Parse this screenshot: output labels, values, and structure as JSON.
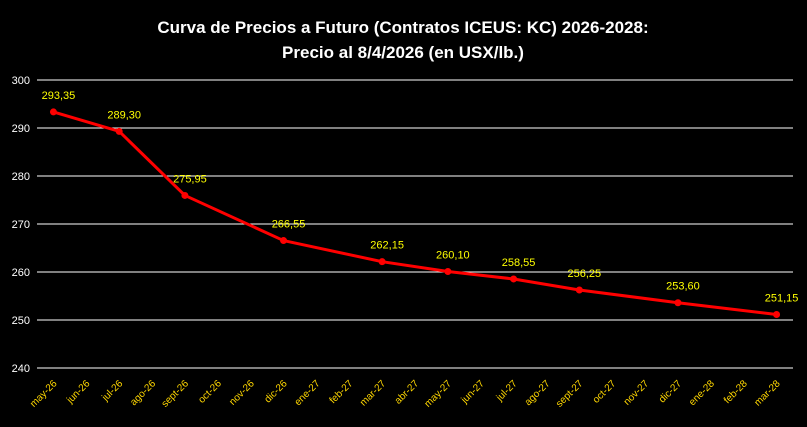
{
  "chart_data": {
    "type": "line",
    "title_line1": "Curva de Precios a Futuro  (Contratos ICEUS: KC) 2026-2028:",
    "title_line2": "Precio al 8/4/2026 (en USX/lb.)",
    "xlabel": "",
    "ylabel": "",
    "ylim": [
      240,
      300
    ],
    "yticks": [
      "240",
      "250",
      "260",
      "270",
      "280",
      "290",
      "300"
    ],
    "grid": true,
    "categories": [
      "may-26",
      "jun-26",
      "jul-26",
      "ago-26",
      "sept-26",
      "oct-26",
      "nov-26",
      "dic-26",
      "ene-27",
      "feb-27",
      "mar-27",
      "abr-27",
      "may-27",
      "jun-27",
      "jul-27",
      "ago-27",
      "sept-27",
      "oct-27",
      "nov-27",
      "dic-27",
      "ene-28",
      "feb-28",
      "mar-28"
    ],
    "series": [
      {
        "points": [
          {
            "category": "may-26",
            "value": 293.35,
            "label": "293,35"
          },
          {
            "category": "jul-26",
            "value": 289.3,
            "label": "289,30"
          },
          {
            "category": "sept-26",
            "value": 275.95,
            "label": "275,95"
          },
          {
            "category": "dic-26",
            "value": 266.55,
            "label": "266,55"
          },
          {
            "category": "mar-27",
            "value": 262.15,
            "label": "262,15"
          },
          {
            "category": "may-27",
            "value": 260.1,
            "label": "260,10"
          },
          {
            "category": "jul-27",
            "value": 258.55,
            "label": "258,55"
          },
          {
            "category": "sept-27",
            "value": 256.25,
            "label": "256,25"
          },
          {
            "category": "dic-27",
            "value": 253.6,
            "label": "253,60"
          },
          {
            "category": "mar-28",
            "value": 251.15,
            "label": "251,15"
          }
        ]
      }
    ],
    "colors": {
      "line": "#ff0000",
      "data_label": "#ffff00",
      "tick_label": "#ffd700",
      "grid": "#ffffff",
      "background": "#000000"
    }
  }
}
